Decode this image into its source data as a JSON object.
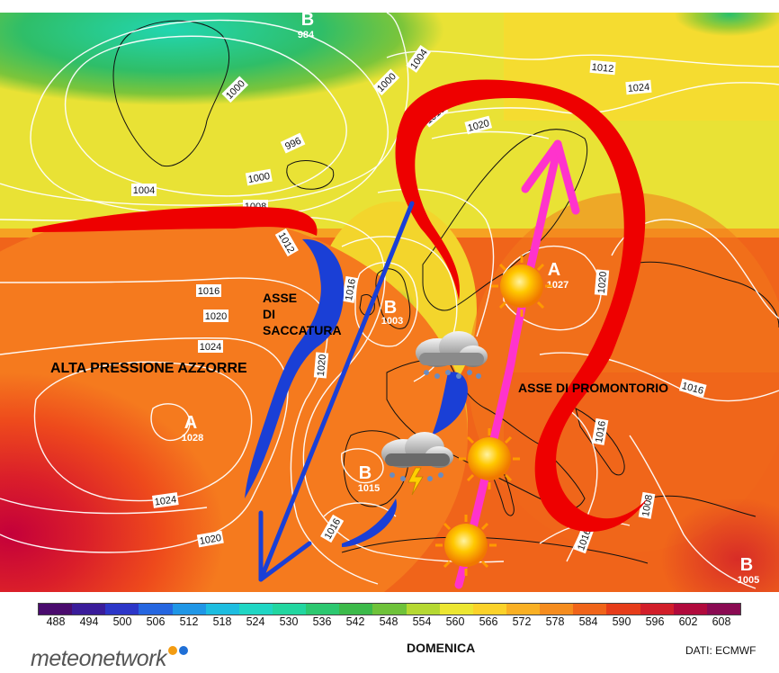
{
  "map": {
    "isobar_labels": [
      "1004",
      "1000",
      "1000",
      "996",
      "1000",
      "1004",
      "1008",
      "1012",
      "1016",
      "1020",
      "1016",
      "1020",
      "1024",
      "1024",
      "1020",
      "1016",
      "1012",
      "1016",
      "1020",
      "1024",
      "1020",
      "1016",
      "1016",
      "1008",
      "1016"
    ],
    "pressure_centers": [
      {
        "letter": "B",
        "value": "984"
      },
      {
        "letter": "A",
        "value": "1028"
      },
      {
        "letter": "B",
        "value": "1003"
      },
      {
        "letter": "B",
        "value": "1015"
      },
      {
        "letter": "A",
        "value": "1027"
      },
      {
        "letter": "B",
        "value": "1005"
      }
    ],
    "annotations": {
      "high": "ALTA PRESSIONE AZZORRE",
      "trough_1": "ASSE",
      "trough_2": "DI",
      "trough_3": "SACCATURA",
      "ridge": "ASSE DI PROMONTORIO"
    },
    "colors": {
      "trough_axis": "#1a3fd6",
      "ridge_axis": "#ff33cc",
      "ridge_outline": "#ee0000",
      "high_core": "#c4003a",
      "low_core": "#22d6b0"
    },
    "weather_icons": [
      "sun",
      "sun",
      "sun",
      "rain-cloud",
      "thunderstorm-cloud"
    ]
  },
  "legend": {
    "ticks": [
      "488",
      "494",
      "500",
      "506",
      "512",
      "518",
      "524",
      "530",
      "536",
      "542",
      "548",
      "554",
      "560",
      "566",
      "572",
      "578",
      "584",
      "590",
      "596",
      "602",
      "608"
    ],
    "colors": [
      "#4a0b6e",
      "#3a1c9a",
      "#2c36c8",
      "#2566e0",
      "#1f96e6",
      "#1dbde0",
      "#20d6c4",
      "#22d6a0",
      "#2cc870",
      "#3cba4a",
      "#6fc23a",
      "#b5d832",
      "#ece632",
      "#fbd22a",
      "#f9b024",
      "#f58c1e",
      "#f0641a",
      "#e63c1a",
      "#d21e2a",
      "#b10a3c",
      "#8a0a52"
    ]
  },
  "footer": {
    "logo": "meteonetwork",
    "day": "DOMENICA",
    "source": "DATI: ECMWF"
  }
}
